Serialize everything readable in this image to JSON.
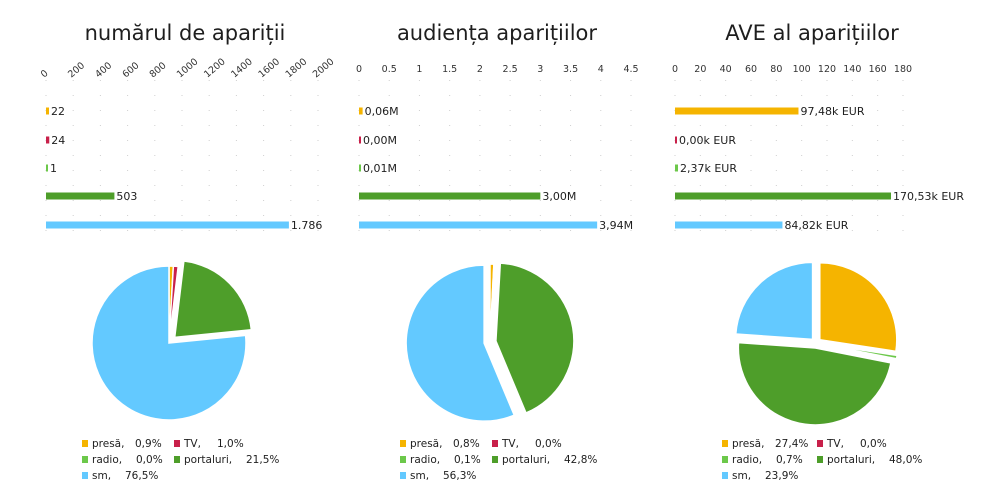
{
  "colors": {
    "presa": "#f5b400",
    "tv": "#c8204a",
    "radio": "#6cc84a",
    "portaluri": "#4e9e2a",
    "sm": "#63c9ff"
  },
  "chart_data": [
    {
      "type": "bar",
      "orientation": "horizontal",
      "title": "numărul de apariții",
      "categories": [
        "presă",
        "TV",
        "radio",
        "portaluri",
        "sm"
      ],
      "values": [
        22,
        24,
        1,
        503,
        1786
      ],
      "value_labels": [
        "22",
        "24",
        "1",
        "503",
        "1.786"
      ],
      "xticks": [
        "0",
        "200",
        "400",
        "600",
        "800",
        "1000",
        "1200",
        "1400",
        "1600",
        "1800",
        "2000"
      ],
      "xlim": [
        0,
        2000
      ],
      "xaxis_position": "top",
      "rotated_ticks": true,
      "grid": true
    },
    {
      "type": "bar",
      "orientation": "horizontal",
      "title": "audiența aparițiilor",
      "categories": [
        "presă",
        "TV",
        "radio",
        "portaluri",
        "sm"
      ],
      "values": [
        0.06,
        0.0,
        0.01,
        3.0,
        3.94
      ],
      "value_labels": [
        "0,06M",
        "0,00M",
        "0,01M",
        "3,00M",
        "3,94M"
      ],
      "xticks": [
        "0",
        "0.5",
        "1",
        "1.5",
        "2",
        "2.5",
        "3",
        "3.5",
        "4",
        "4.5"
      ],
      "xlim": [
        0,
        4.5
      ],
      "xaxis_position": "top",
      "rotated_ticks": false,
      "grid": true
    },
    {
      "type": "bar",
      "orientation": "horizontal",
      "title": "AVE al aparițiilor",
      "categories": [
        "presă",
        "TV",
        "radio",
        "portaluri",
        "sm"
      ],
      "values": [
        97.48,
        0.0,
        2.37,
        170.53,
        84.82
      ],
      "value_labels": [
        "97,48k EUR",
        "0,00k EUR",
        "2,37k EUR",
        "170,53k EUR",
        "84,82k EUR"
      ],
      "xticks": [
        "0",
        "20",
        "40",
        "60",
        "80",
        "100",
        "120",
        "140",
        "160",
        "180"
      ],
      "xlim": [
        0,
        180
      ],
      "xaxis_position": "top",
      "rotated_ticks": false,
      "grid": true
    },
    {
      "type": "pie",
      "categories": [
        "presă",
        "TV",
        "radio",
        "portaluri",
        "sm"
      ],
      "values": [
        0.9,
        1.0,
        0.0,
        21.5,
        76.5
      ],
      "legend": {
        "rows": [
          [
            {
              "name": "presă,",
              "value": "0,9%"
            },
            {
              "name": "TV,",
              "value": "1,0%"
            }
          ],
          [
            {
              "name": "radio,",
              "value": "0,0%"
            },
            {
              "name": "portaluri,",
              "value": "21,5%"
            }
          ],
          [
            {
              "name": "sm,",
              "value": "76,5%"
            }
          ]
        ],
        "placement": "bottom"
      }
    },
    {
      "type": "pie",
      "categories": [
        "presă",
        "TV",
        "radio",
        "portaluri",
        "sm"
      ],
      "values": [
        0.8,
        0.0,
        0.1,
        42.8,
        56.3
      ],
      "legend": {
        "rows": [
          [
            {
              "name": "presă,",
              "value": "0,8%"
            },
            {
              "name": "TV,",
              "value": "0,0%"
            }
          ],
          [
            {
              "name": "radio,",
              "value": "0,1%"
            },
            {
              "name": "portaluri,",
              "value": "42,8%"
            }
          ],
          [
            {
              "name": "sm,",
              "value": "56,3%"
            }
          ]
        ],
        "placement": "bottom"
      }
    },
    {
      "type": "pie",
      "categories": [
        "presă",
        "TV",
        "radio",
        "portaluri",
        "sm"
      ],
      "values": [
        27.4,
        0.0,
        0.7,
        48.0,
        23.9
      ],
      "legend": {
        "rows": [
          [
            {
              "name": "presă,",
              "value": "27,4%"
            },
            {
              "name": "TV,",
              "value": "0,0%"
            }
          ],
          [
            {
              "name": "radio,",
              "value": "0,7%"
            },
            {
              "name": "portaluri,",
              "value": "48,0%"
            }
          ],
          [
            {
              "name": "sm,",
              "value": "23,9%"
            }
          ]
        ],
        "placement": "bottom"
      }
    }
  ]
}
